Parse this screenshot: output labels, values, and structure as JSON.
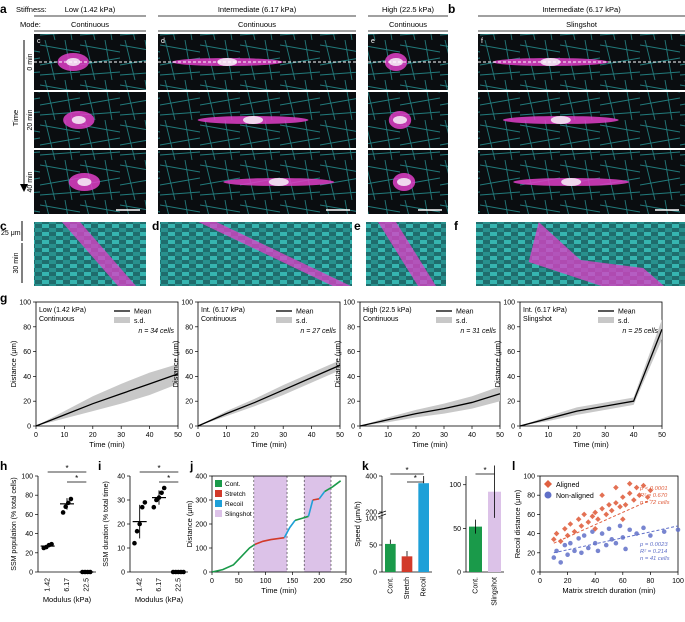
{
  "header": {
    "stiffness_label": "Stiffness:",
    "mode_label": "Mode:",
    "time_label": "Time",
    "kymo_scale_y": "25 μm",
    "kymo_scale_t": "30 min",
    "columns": [
      {
        "stiffness": "Low (1.42 kPa)",
        "mode": "Continuous"
      },
      {
        "stiffness": "Intermediate (6.17 kPa)",
        "mode": "Continuous"
      },
      {
        "stiffness": "High (22.5 kPa)",
        "mode": "Continuous"
      },
      {
        "stiffness": "Intermediate (6.17 kPa)",
        "mode": "Slingshot"
      }
    ],
    "time_points": [
      "0 min",
      "20 min",
      "40 min"
    ]
  },
  "panel_letters": [
    "a",
    "b",
    "c",
    "d",
    "e",
    "f",
    "g",
    "h",
    "i",
    "j",
    "k",
    "l"
  ],
  "sub_letters": [
    "c",
    "d",
    "e",
    "f"
  ],
  "colors": {
    "cyan": "#35c6c6",
    "magenta": "#e040c8",
    "green": "#1a9a4a",
    "red": "#d23a2a",
    "blue": "#1ea0d8",
    "lilac": "#dcc2e8",
    "aligned": "#e06040",
    "nonaligned": "#6070c8"
  },
  "chart_data": [
    {
      "panel": "g",
      "type": "line",
      "title": "Low (1.42 kPa)",
      "subtitle": "Continuous",
      "n_label": "n = 34 cells",
      "legend": [
        "Mean",
        "s.d."
      ],
      "xlabel": "Time (min)",
      "ylabel": "Distance (μm)",
      "xlim": [
        0,
        50
      ],
      "ylim": [
        0,
        100
      ],
      "xticks": [
        "0",
        "10",
        "20",
        "30",
        "40",
        "50"
      ],
      "yticks": [
        "0",
        "20",
        "40",
        "60",
        "80",
        "100"
      ],
      "x": [
        0,
        10,
        20,
        30,
        40,
        50
      ],
      "mean": [
        0,
        9,
        18,
        26,
        34,
        42
      ],
      "sd": [
        0,
        3,
        6,
        8,
        9,
        8
      ]
    },
    {
      "panel": "g",
      "type": "line",
      "title": "Int. (6.17 kPa)",
      "subtitle": "Continuous",
      "n_label": "n = 27 cells",
      "legend": [
        "Mean",
        "s.d."
      ],
      "xlabel": "Time (min)",
      "ylabel": "Distance (μm)",
      "xlim": [
        0,
        50
      ],
      "ylim": [
        0,
        100
      ],
      "xticks": [
        "0",
        "10",
        "20",
        "30",
        "40",
        "50"
      ],
      "yticks": [
        "0",
        "20",
        "40",
        "60",
        "80",
        "100"
      ],
      "x": [
        0,
        10,
        20,
        30,
        40,
        50
      ],
      "mean": [
        0,
        10,
        19,
        29,
        39,
        49
      ],
      "sd": [
        0,
        2,
        3,
        4,
        4,
        4
      ]
    },
    {
      "panel": "g",
      "type": "line",
      "title": "High (22.5 kPa)",
      "subtitle": "Continuous",
      "n_label": "n = 31 cells",
      "legend": [
        "Mean",
        "s.d."
      ],
      "xlabel": "Time (min)",
      "ylabel": "Distance (μm)",
      "xlim": [
        0,
        50
      ],
      "ylim": [
        0,
        100
      ],
      "xticks": [
        "0",
        "10",
        "20",
        "30",
        "40",
        "50"
      ],
      "yticks": [
        "0",
        "20",
        "40",
        "60",
        "80",
        "100"
      ],
      "x": [
        0,
        10,
        20,
        30,
        40,
        50
      ],
      "mean": [
        0,
        5,
        10,
        14,
        19,
        26
      ],
      "sd": [
        0,
        2,
        3,
        4,
        5,
        6
      ]
    },
    {
      "panel": "g",
      "type": "line",
      "title": "Int. (6.17 kPa)",
      "subtitle": "Slingshot",
      "n_label": "n = 25 cells",
      "legend": [
        "Mean",
        "s.d."
      ],
      "xlabel": "Time (min)",
      "ylabel": "Distance (μm)",
      "xlim": [
        0,
        50
      ],
      "ylim": [
        0,
        100
      ],
      "xticks": [
        "0",
        "10",
        "20",
        "30",
        "40",
        "50"
      ],
      "yticks": [
        "0",
        "20",
        "40",
        "60",
        "80",
        "100"
      ],
      "x": [
        0,
        10,
        20,
        30,
        40,
        50
      ],
      "mean": [
        0,
        6,
        12,
        16,
        20,
        78
      ],
      "sd": [
        0,
        2,
        3,
        3,
        3,
        8
      ]
    },
    {
      "panel": "h",
      "type": "scatter",
      "xlabel": "Modulus (kPa)",
      "ylabel": "SSM population (% total cells)",
      "categories": [
        "1.42",
        "6.17",
        "22.5"
      ],
      "ylim": [
        0,
        100
      ],
      "yticks": [
        "0",
        "20",
        "40",
        "60",
        "80",
        "100"
      ],
      "means": [
        27,
        71,
        0
      ],
      "sds": [
        2,
        6,
        0
      ],
      "points": [
        [
          25,
          26,
          28,
          29
        ],
        [
          62,
          68,
          72,
          76
        ],
        [
          0,
          0,
          0,
          0
        ]
      ],
      "sig": [
        "*",
        "*"
      ]
    },
    {
      "panel": "i",
      "type": "scatter",
      "xlabel": "Modulus (kPa)",
      "ylabel": "SSM duration (% total time)",
      "categories": [
        "1.42",
        "6.17",
        "22.5"
      ],
      "ylim": [
        0,
        40
      ],
      "yticks": [
        "0",
        "10",
        "20",
        "30",
        "40"
      ],
      "means": [
        21,
        31,
        0
      ],
      "sds": [
        7,
        3,
        0
      ],
      "points": [
        [
          12,
          17,
          20,
          27,
          29
        ],
        [
          27,
          30,
          31,
          33,
          35
        ],
        [
          0,
          0,
          0,
          0,
          0
        ]
      ],
      "sig": [
        "*",
        "*"
      ]
    },
    {
      "panel": "j",
      "type": "line",
      "xlabel": "Time (min)",
      "ylabel": "Distance (μm)",
      "xlim": [
        0,
        250
      ],
      "ylim": [
        0,
        400
      ],
      "xticks": [
        "0",
        "50",
        "100",
        "150",
        "200",
        "250"
      ],
      "yticks": [
        "0",
        "100",
        "200",
        "300",
        "400"
      ],
      "legend": [
        "Cont.",
        "Stretch",
        "Recoil",
        "Slingshot"
      ],
      "slingshot_windows": [
        [
          78,
          140
        ],
        [
          172,
          222
        ]
      ],
      "segments": [
        {
          "phase": "Cont.",
          "x": [
            0,
            20,
            40,
            55,
            70,
            80
          ],
          "y": [
            0,
            10,
            30,
            65,
            100,
            115
          ]
        },
        {
          "phase": "Stretch",
          "x": [
            80,
            95,
            110,
            125,
            135
          ],
          "y": [
            115,
            128,
            135,
            140,
            143
          ]
        },
        {
          "phase": "Recoil",
          "x": [
            135,
            145,
            155
          ],
          "y": [
            143,
            185,
            215
          ]
        },
        {
          "phase": "Cont.",
          "x": [
            155,
            170,
            180
          ],
          "y": [
            215,
            225,
            232
          ]
        },
        {
          "phase": "Recoil",
          "x": [
            180,
            188
          ],
          "y": [
            232,
            300
          ]
        },
        {
          "phase": "Stretch",
          "x": [
            188,
            200
          ],
          "y": [
            300,
            305
          ]
        },
        {
          "phase": "Recoil",
          "x": [
            200,
            210
          ],
          "y": [
            305,
            335
          ]
        },
        {
          "phase": "Cont.",
          "x": [
            210,
            225,
            240
          ],
          "y": [
            335,
            355,
            380
          ]
        }
      ]
    },
    {
      "panel": "k",
      "type": "bar",
      "ylabel": "Speed (μm/h)",
      "categories": [
        "Cont.",
        "Stretch",
        "Recoil"
      ],
      "values": [
        52,
        29,
        360
      ],
      "errors": [
        8,
        10,
        40
      ],
      "yticks": [
        "0",
        "50",
        "100",
        "200",
        "400"
      ],
      "sig": [
        "*",
        "*"
      ]
    },
    {
      "panel": "k2",
      "type": "bar",
      "categories": [
        "Cont.",
        "Slingshot"
      ],
      "values": [
        52,
        92
      ],
      "errors": [
        8,
        30
      ],
      "yticks": [
        "0",
        "50",
        "100"
      ],
      "sig": [
        "*"
      ]
    },
    {
      "panel": "l",
      "type": "scatter",
      "xlabel": "Matrix stretch duration (min)",
      "ylabel": "Recoil distance (μm)",
      "xlim": [
        0,
        100
      ],
      "ylim": [
        0,
        100
      ],
      "xticks": [
        "0",
        "20",
        "40",
        "60",
        "80",
        "100"
      ],
      "yticks": [
        "0",
        "20",
        "40",
        "60",
        "80",
        "100"
      ],
      "legend": [
        "Aligned",
        "Non-aligned"
      ],
      "aligned_stats": [
        "p < 0.0001",
        "R² = 0.670",
        "n = 72 cells"
      ],
      "nonaligned_stats": [
        "p = 0.0023",
        "R² = 0.214",
        "n = 41 cells"
      ],
      "aligned_fit": [
        [
          10,
          30
        ],
        [
          80,
          75
        ]
      ],
      "nonaligned_fit": [
        [
          10,
          20
        ],
        [
          100,
          48
        ]
      ],
      "aligned_points": [
        [
          10,
          34
        ],
        [
          12,
          40
        ],
        [
          15,
          32
        ],
        [
          18,
          45
        ],
        [
          20,
          38
        ],
        [
          22,
          50
        ],
        [
          25,
          42
        ],
        [
          28,
          55
        ],
        [
          30,
          48
        ],
        [
          32,
          60
        ],
        [
          35,
          52
        ],
        [
          38,
          58
        ],
        [
          40,
          62
        ],
        [
          42,
          55
        ],
        [
          45,
          66
        ],
        [
          48,
          60
        ],
        [
          50,
          70
        ],
        [
          52,
          64
        ],
        [
          55,
          72
        ],
        [
          58,
          68
        ],
        [
          60,
          78
        ],
        [
          62,
          70
        ],
        [
          65,
          82
        ],
        [
          68,
          75
        ],
        [
          70,
          88
        ],
        [
          72,
          80
        ],
        [
          75,
          90
        ],
        [
          78,
          78
        ],
        [
          80,
          85
        ],
        [
          45,
          80
        ],
        [
          55,
          88
        ],
        [
          60,
          55
        ],
        [
          65,
          92
        ],
        [
          40,
          45
        ]
      ],
      "nonaligned_points": [
        [
          10,
          15
        ],
        [
          12,
          22
        ],
        [
          15,
          10
        ],
        [
          18,
          28
        ],
        [
          20,
          18
        ],
        [
          22,
          30
        ],
        [
          25,
          22
        ],
        [
          28,
          35
        ],
        [
          30,
          20
        ],
        [
          32,
          38
        ],
        [
          35,
          25
        ],
        [
          38,
          42
        ],
        [
          40,
          30
        ],
        [
          42,
          22
        ],
        [
          45,
          40
        ],
        [
          48,
          28
        ],
        [
          50,
          45
        ],
        [
          52,
          34
        ],
        [
          55,
          30
        ],
        [
          58,
          48
        ],
        [
          60,
          36
        ],
        [
          62,
          24
        ],
        [
          65,
          44
        ],
        [
          70,
          40
        ],
        [
          75,
          46
        ],
        [
          80,
          38
        ],
        [
          90,
          42
        ],
        [
          100,
          44
        ]
      ]
    }
  ]
}
